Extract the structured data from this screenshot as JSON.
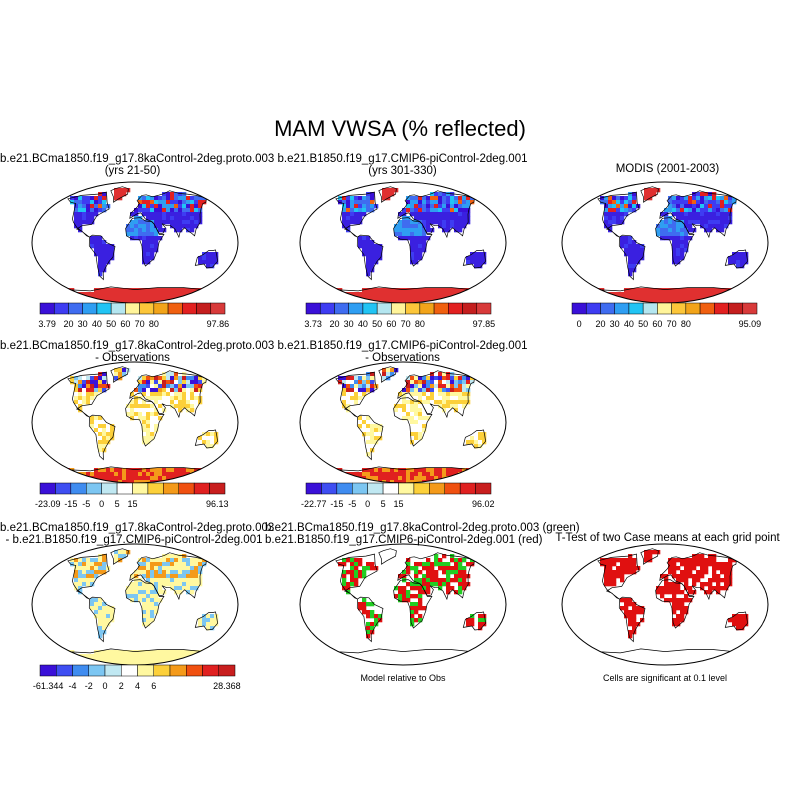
{
  "title": "MAM VWSA (% reflected)",
  "colors": {
    "abs": [
      "#3a10d8",
      "#3e3cf2",
      "#3f6cf0",
      "#2f9ef2",
      "#21c4f4",
      "#b4e6f0",
      "#fff49a",
      "#fcc63a",
      "#f2a41a",
      "#f06010",
      "#e22020",
      "#c41e1e",
      "#d83a3a"
    ],
    "diff": [
      "#3a10d8",
      "#3e4ef2",
      "#3f8cf0",
      "#7cc6f2",
      "#c0e8f2",
      "#ffffff",
      "#fff8a0",
      "#fcd03a",
      "#f49a1a",
      "#f05010",
      "#e02020",
      "#c81e1e"
    ],
    "land_low": "#3a20e0",
    "ice": "#e03030",
    "green": "#22cc22",
    "red": "#e01010"
  },
  "panels": [
    {
      "id": "p1",
      "title_lines": [
        "b.e21.BCma1850.f19_g17.8kaControl-2deg.proto.003",
        "(yrs 21-50)"
      ],
      "colorbar": {
        "min": "3.79",
        "max": "97.86",
        "ticks": [
          "20",
          "30",
          "40",
          "50",
          "60",
          "70",
          "80"
        ]
      }
    },
    {
      "id": "p2",
      "title_lines": [
        "b.e21.B1850.f19_g17.CMIP6-piControl-2deg.001",
        "(yrs 301-330)"
      ],
      "colorbar": {
        "min": "3.73",
        "max": "97.85",
        "ticks": [
          "20",
          "30",
          "40",
          "50",
          "60",
          "70",
          "80"
        ]
      }
    },
    {
      "id": "p3",
      "title_lines": [
        "MODIS (2001-2003)"
      ],
      "colorbar": {
        "min": "0",
        "max": "95.09",
        "ticks": [
          "20",
          "30",
          "40",
          "50",
          "60",
          "70",
          "80"
        ]
      }
    },
    {
      "id": "p4",
      "title_lines": [
        "b.e21.BCma1850.f19_g17.8kaControl-2deg.proto.003",
        "- Observations"
      ],
      "colorbar": {
        "min": "-23.09",
        "max": "96.13",
        "ticks": [
          "-15",
          "-5",
          "0",
          "5",
          "15"
        ]
      }
    },
    {
      "id": "p5",
      "title_lines": [
        "b.e21.B1850.f19_g17.CMIP6-piControl-2deg.001",
        "- Observations"
      ],
      "colorbar": {
        "min": "-22.77",
        "max": "96.02",
        "ticks": [
          "-15",
          "-5",
          "0",
          "5",
          "15"
        ]
      }
    },
    {
      "id": "p7",
      "title_lines": [
        "b.e21.BCma1850.f19_g17.8kaControl-2deg.proto.003",
        "- b.e21.B1850.f19_g17.CMIP6-piControl-2deg.001"
      ],
      "colorbar": {
        "min": "-61.344",
        "max": "28.368",
        "ticks": [
          "-4",
          "-2",
          "0",
          "2",
          "4",
          "6"
        ]
      }
    },
    {
      "id": "p8",
      "title_lines": [
        "b.e21.BCma1850.f19_g17.8kaControl-2deg.proto.003 (green)",
        "b.e21.B1850.f19_g17.CMIP6-piControl-2deg.001 (red)"
      ],
      "note": "Model relative to Obs"
    },
    {
      "id": "p9",
      "title_lines": [
        "T-Test of two Case means at each grid point"
      ],
      "note": "Cells are significant at 0.1 level"
    }
  ]
}
